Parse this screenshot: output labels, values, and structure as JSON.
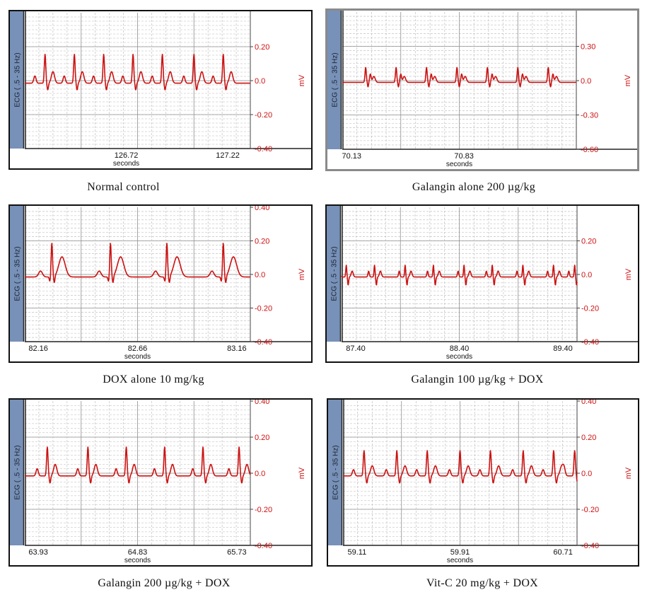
{
  "chart_data": [
    {
      "type": "line",
      "title": "Normal control",
      "ylabel_left": "ECG ( .5 - 35 Hz)",
      "ylabel_right": "mV",
      "xlabel": "seconds",
      "x_ticks": [
        "126.72",
        "127.22"
      ],
      "y_ticks": [
        "0.20",
        "0.0",
        "-0.20",
        "-0.40"
      ],
      "ylim": [
        -0.4,
        0.4
      ],
      "grid": true,
      "color": "#cc1111",
      "waveform": {
        "beats": [
          0.09,
          0.22,
          0.35,
          0.48,
          0.61,
          0.75,
          0.88
        ],
        "peak": 0.17,
        "pattern": "normal"
      }
    },
    {
      "type": "line",
      "title": "Galangin alone 200 µg/kg",
      "ylabel_left": "ECG ( .5 - 35 Hz)",
      "ylabel_right": "mV",
      "xlabel": "seconds",
      "x_ticks": [
        "70.13",
        "70.83"
      ],
      "y_ticks": [
        "0.30",
        "0.0",
        "-0.30",
        "-0.60"
      ],
      "ylim": [
        -0.6,
        0.6
      ],
      "grid": true,
      "color": "#cc1111",
      "waveform": {
        "beats": [
          0.1,
          0.23,
          0.36,
          0.49,
          0.62,
          0.75,
          0.88
        ],
        "peak": 0.13,
        "pattern": "notched"
      }
    },
    {
      "type": "line",
      "title": "DOX alone 10 mg/kg",
      "ylabel_left": "ECG ( .5 - 35 Hz)",
      "ylabel_right": "mV",
      "xlabel": "seconds",
      "x_ticks": [
        "82.16",
        "82.66",
        "83.16"
      ],
      "y_ticks": [
        "0.40",
        "0.20",
        "0.0",
        "-0.20",
        "-0.40"
      ],
      "ylim": [
        -0.4,
        0.4
      ],
      "grid": true,
      "color": "#cc1111",
      "waveform": {
        "beats": [
          0.12,
          0.38,
          0.63,
          0.88
        ],
        "peak": 0.2,
        "pattern": "wideT"
      }
    },
    {
      "type": "line",
      "title": "Galangin 100 µg/kg + DOX",
      "ylabel_left": "ECG ( .5 - 35 Hz)",
      "ylabel_right": "mV",
      "xlabel": "seconds",
      "x_ticks": [
        "87.40",
        "88.40",
        "89.40"
      ],
      "y_ticks": [
        "0.20",
        "0.0",
        "-0.20",
        "-0.40"
      ],
      "ylim": [
        -0.4,
        0.4
      ],
      "grid": true,
      "color": "#cc1111",
      "waveform": {
        "beats": [
          0.02,
          0.14,
          0.27,
          0.39,
          0.52,
          0.64,
          0.77,
          0.9,
          0.99
        ],
        "peak": 0.07,
        "pattern": "small"
      }
    },
    {
      "type": "line",
      "title": "Galangin 200 µg/kg + DOX",
      "ylabel_left": "ECG ( .5 - 35 Hz)",
      "ylabel_right": "mV",
      "xlabel": "seconds",
      "x_ticks": [
        "63.93",
        "64.83",
        "65.73"
      ],
      "y_ticks": [
        "0.40",
        "0.20",
        "0.0",
        "-0.20",
        "-0.40"
      ],
      "ylim": [
        -0.4,
        0.4
      ],
      "grid": true,
      "color": "#cc1111",
      "waveform": {
        "beats": [
          0.1,
          0.28,
          0.45,
          0.62,
          0.79,
          0.95
        ],
        "peak": 0.16,
        "pattern": "normal"
      }
    },
    {
      "type": "line",
      "title": "Vit-C 20 mg/kg + DOX",
      "ylabel_left": "ECG ( .5 - 35 Hz)",
      "ylabel_right": "mV",
      "xlabel": "seconds",
      "x_ticks": [
        "59.11",
        "59.91",
        "60.71"
      ],
      "y_ticks": [
        "0.40",
        "0.20",
        "0.0",
        "-0.20",
        "-0.40"
      ],
      "ylim": [
        -0.4,
        0.4
      ],
      "grid": true,
      "color": "#cc1111",
      "waveform": {
        "beats": [
          0.09,
          0.23,
          0.36,
          0.5,
          0.63,
          0.77,
          0.9,
          0.99
        ],
        "peak": 0.14,
        "pattern": "normal"
      }
    }
  ]
}
